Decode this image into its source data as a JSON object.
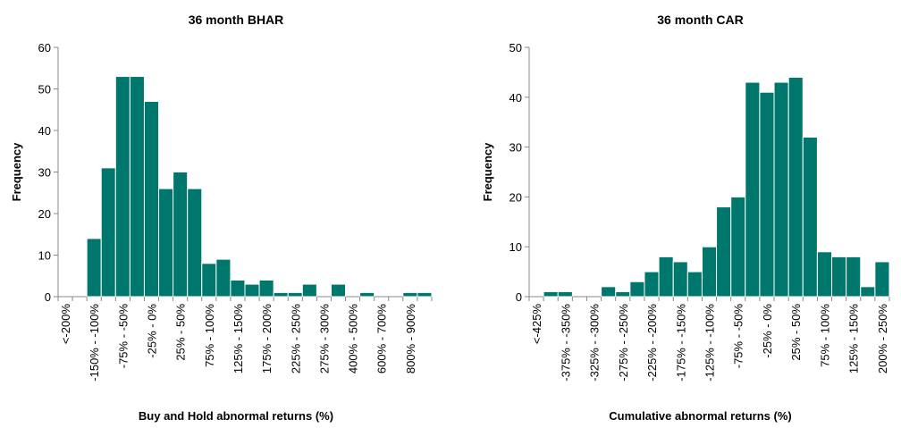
{
  "chart_data": [
    {
      "type": "bar",
      "title": "36 month BHAR",
      "x_label": "Buy and Hold abnormal returns (%)",
      "y_label": "Frequency",
      "categories": [
        "<-200%",
        null,
        "-150% - -100%",
        null,
        "-75% - -50%",
        null,
        "-25% - 0%",
        null,
        "25% - 50%",
        null,
        "75% - 100%",
        null,
        "125% - 150%",
        null,
        "175% - 200%",
        null,
        "225% - 250%",
        null,
        "275% - 300%",
        null,
        "400% - 500%",
        null,
        "600% - 700%",
        null,
        "800% - 900%",
        null
      ],
      "values": [
        0,
        0,
        14,
        31,
        53,
        53,
        47,
        26,
        30,
        26,
        8,
        9,
        4,
        3,
        4,
        1,
        1,
        3,
        0,
        3,
        0,
        1,
        0,
        0,
        1,
        1
      ],
      "color": "#00776c",
      "ylim": [
        0,
        60
      ],
      "yticks": [
        0,
        10,
        20,
        30,
        40,
        50,
        60
      ]
    },
    {
      "type": "bar",
      "title": "36 month CAR",
      "x_label": "Cumulative abnormal returns (%)",
      "y_label": "Frequency",
      "categories": [
        "<-425%",
        null,
        "-375% - -350%",
        null,
        "-325% - -300%",
        null,
        "-275% - -250%",
        null,
        "-225% - -200%",
        null,
        "-175% - -150%",
        null,
        "-125% - -100%",
        null,
        "-75% - -50%",
        null,
        "-25% - 0%",
        null,
        "25% - 50%",
        null,
        "75% - 100%",
        null,
        "125% - 150%",
        null,
        "200% - 250%"
      ],
      "values": [
        0,
        1,
        1,
        0,
        0,
        2,
        1,
        3,
        5,
        8,
        7,
        5,
        10,
        18,
        20,
        43,
        41,
        43,
        44,
        32,
        9,
        8,
        8,
        2,
        7
      ],
      "color": "#00776c",
      "ylim": [
        0,
        50
      ],
      "yticks": [
        0,
        10,
        20,
        30,
        40,
        50
      ]
    }
  ]
}
